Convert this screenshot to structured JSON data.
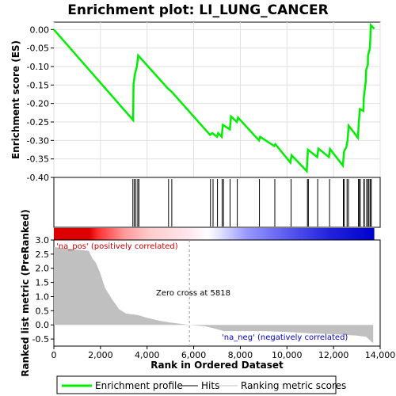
{
  "title": "Enrichment plot: LI_LUNG_CANCER",
  "chart_data": {
    "type": "line",
    "title": "Enrichment plot: LI_LUNG_CANCER",
    "xlabel": "Rank in Ordered Dataset",
    "xlim": [
      0,
      14000
    ],
    "x_ticks": [
      0,
      2000,
      4000,
      6000,
      8000,
      10000,
      12000,
      14000
    ],
    "x_tick_labels": [
      "0",
      "2,000",
      "4,000",
      "6,000",
      "8,000",
      "10,000",
      "12,000",
      "14,000"
    ],
    "es_panel": {
      "ylabel": "Enrichment score (ES)",
      "ylim": [
        -0.4,
        0.02
      ],
      "y_ticks": [
        0.0,
        -0.05,
        -0.1,
        -0.15,
        -0.2,
        -0.25,
        -0.3,
        -0.35,
        -0.4
      ],
      "y_tick_labels": [
        "0.00",
        "-0.05",
        "-0.10",
        "-0.15",
        "-0.20",
        "-0.25",
        "-0.30",
        "-0.35",
        "-0.40"
      ],
      "grid": true,
      "series_color": "#00ee00",
      "points": [
        [
          0,
          0.0
        ],
        [
          3400,
          -0.245
        ],
        [
          3420,
          -0.148
        ],
        [
          3480,
          -0.12
        ],
        [
          3560,
          -0.1
        ],
        [
          3620,
          -0.07
        ],
        [
          4900,
          -0.16
        ],
        [
          5050,
          -0.168
        ],
        [
          6700,
          -0.285
        ],
        [
          6800,
          -0.28
        ],
        [
          7000,
          -0.29
        ],
        [
          7050,
          -0.28
        ],
        [
          7200,
          -0.29
        ],
        [
          7250,
          -0.258
        ],
        [
          7550,
          -0.27
        ],
        [
          7600,
          -0.235
        ],
        [
          7850,
          -0.25
        ],
        [
          7900,
          -0.238
        ],
        [
          8800,
          -0.3
        ],
        [
          8850,
          -0.29
        ],
        [
          9450,
          -0.315
        ],
        [
          9500,
          -0.31
        ],
        [
          10150,
          -0.36
        ],
        [
          10200,
          -0.34
        ],
        [
          10850,
          -0.383
        ],
        [
          10900,
          -0.325
        ],
        [
          11300,
          -0.345
        ],
        [
          11350,
          -0.322
        ],
        [
          11800,
          -0.345
        ],
        [
          11850,
          -0.323
        ],
        [
          12400,
          -0.368
        ],
        [
          12450,
          -0.33
        ],
        [
          12550,
          -0.318
        ],
        [
          12600,
          -0.3
        ],
        [
          12650,
          -0.26
        ],
        [
          13050,
          -0.293
        ],
        [
          13080,
          -0.255
        ],
        [
          13130,
          -0.215
        ],
        [
          13280,
          -0.22
        ],
        [
          13300,
          -0.183
        ],
        [
          13380,
          -0.14
        ],
        [
          13400,
          -0.11
        ],
        [
          13470,
          -0.095
        ],
        [
          13480,
          -0.07
        ],
        [
          13560,
          -0.05
        ],
        [
          13600,
          0.012
        ],
        [
          13750,
          0.002
        ]
      ]
    },
    "hits_panel": {
      "hit_ranks": [
        3390,
        3450,
        3520,
        3600,
        3650,
        4920,
        5060,
        6720,
        6830,
        7020,
        7220,
        7280,
        7560,
        7870,
        8820,
        9480,
        10180,
        10880,
        10920,
        11320,
        11830,
        12420,
        12460,
        12580,
        12640,
        13070,
        13100,
        13150,
        13300,
        13320,
        13420,
        13480,
        13520,
        13580,
        13620
      ]
    },
    "ranked_metric_panel": {
      "ylabel": "Ranked list metric (PreRanked)",
      "ylim": [
        -0.75,
        3.0
      ],
      "y_ticks": [
        3.0,
        2.5,
        2.0,
        1.5,
        1.0,
        0.5,
        0.0,
        -0.5
      ],
      "y_tick_labels": [
        "3.0",
        "2.5",
        "2.0",
        "1.5",
        "1.0",
        "0.5",
        "0.0",
        "-0.5"
      ],
      "fill_color": "#c0c0c0",
      "profile": [
        [
          0,
          2.75
        ],
        [
          700,
          2.68
        ],
        [
          1500,
          2.62
        ],
        [
          1650,
          2.35
        ],
        [
          1800,
          2.2
        ],
        [
          2000,
          1.8
        ],
        [
          2200,
          1.3
        ],
        [
          2500,
          0.9
        ],
        [
          2800,
          0.55
        ],
        [
          3100,
          0.4
        ],
        [
          3600,
          0.35
        ],
        [
          4000,
          0.25
        ],
        [
          4500,
          0.15
        ],
        [
          5000,
          0.08
        ],
        [
          5818,
          0.0
        ],
        [
          6500,
          -0.05
        ],
        [
          7000,
          -0.15
        ],
        [
          7300,
          -0.22
        ],
        [
          9000,
          -0.22
        ],
        [
          10000,
          -0.25
        ],
        [
          11000,
          -0.3
        ],
        [
          12000,
          -0.33
        ],
        [
          13000,
          -0.38
        ],
        [
          13400,
          -0.42
        ],
        [
          13700,
          -0.65
        ]
      ],
      "zero_cross_rank": 5818,
      "zero_cross_label": "Zero cross at 5818",
      "pos_label": "'na_pos' (positively correlated)",
      "neg_label": "'na_neg' (negatively correlated)"
    },
    "legend": {
      "placement": "bottom",
      "entries": [
        {
          "label": "Enrichment profile",
          "color": "#00ee00"
        },
        {
          "label": "Hits",
          "color": "#000000"
        },
        {
          "label": "Ranking metric scores",
          "color": "#c0c0c0"
        }
      ]
    }
  }
}
